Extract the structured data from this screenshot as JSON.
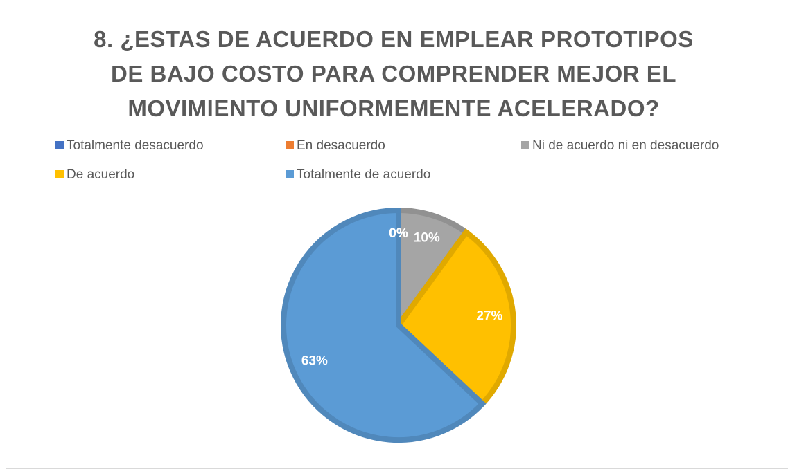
{
  "chart_data": {
    "type": "pie",
    "title": "8. ¿ESTAS DE ACUERDO EN EMPLEAR PROTOTIPOS DE BAJO COSTO PARA COMPRENDER MEJOR EL MOVIMIENTO UNIFORMEMENTE ACELERADO?",
    "categories": [
      "Totalmente desacuerdo",
      "En desacuerdo",
      "Ni de acuerdo ni en desacuerdo",
      "De acuerdo",
      "Totalmente de acuerdo"
    ],
    "values": [
      0,
      0,
      10,
      27,
      63
    ],
    "value_labels": [
      "0%",
      "0%",
      "10%",
      "27%",
      "63%"
    ],
    "colors": [
      "#4472c4",
      "#ed7d31",
      "#a5a5a5",
      "#ffc000",
      "#5b9bd5"
    ],
    "legend": "top"
  }
}
